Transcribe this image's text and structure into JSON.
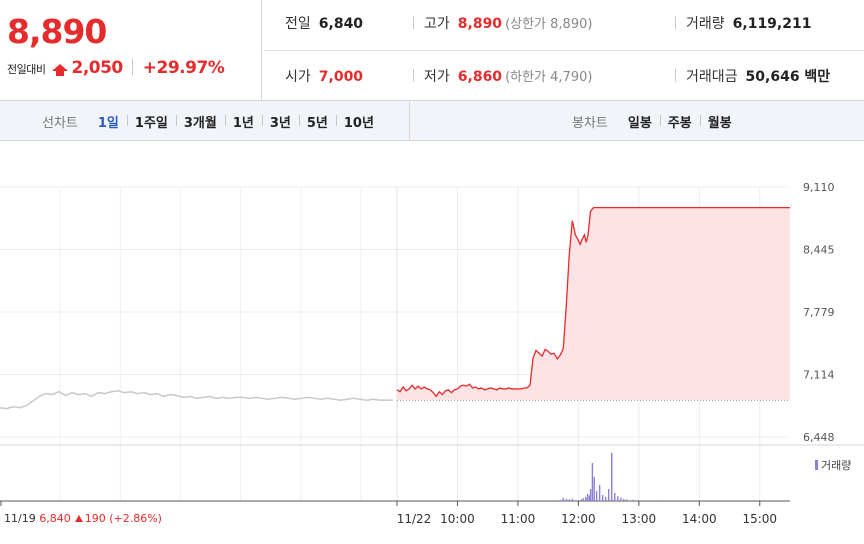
{
  "quote": {
    "price": "8,890",
    "change_label": "전일대비",
    "change_amount": "2,050",
    "change_pct": "+29.97%",
    "stats": {
      "prev_close_label": "전일",
      "prev_close": "6,840",
      "high_label": "고가",
      "high": "8,890",
      "high_sub": "(상한가 8,890)",
      "volume_label": "거래량",
      "volume": "6,119,211",
      "open_label": "시가",
      "open": "7,000",
      "low_label": "저가",
      "low": "6,860",
      "low_sub": "(하한가 4,790)",
      "amount_label": "거래대금",
      "amount": "50,646 백만"
    },
    "colors": {
      "up": "#e52b2b",
      "active_tab": "#2b5cbf"
    }
  },
  "tabs": {
    "line_label": "선차트",
    "line_tabs": [
      "1일",
      "1주일",
      "3개월",
      "1년",
      "3년",
      "5년",
      "10년"
    ],
    "line_active": "1일",
    "candle_label": "봉차트",
    "candle_tabs": [
      "일봉",
      "주봉",
      "월봉"
    ]
  },
  "chart_data": {
    "type": "line",
    "title": "",
    "y_ticks": [
      9110,
      8445,
      7779,
      7114,
      6448
    ],
    "y_tick_labels": [
      "9,110",
      "8,445",
      "7,779",
      "7,114",
      "6,448"
    ],
    "ylim": [
      6448,
      9110
    ],
    "prev_close_line": 6840,
    "x_tick_labels": [
      "11/22",
      "10:00",
      "11:00",
      "12:00",
      "13:00",
      "14:00",
      "15:00"
    ],
    "prev_day": {
      "name": "11/19",
      "close": "6,840",
      "change": "190",
      "change_pct": "(+2.86%)",
      "line_color": "#c8c8c8",
      "values": [
        6760,
        6750,
        6770,
        6760,
        6780,
        6830,
        6880,
        6910,
        6900,
        6930,
        6890,
        6920,
        6900,
        6910,
        6880,
        6920,
        6910,
        6930,
        6940,
        6920,
        6930,
        6910,
        6920,
        6900,
        6910,
        6880,
        6900,
        6890,
        6870,
        6880,
        6860,
        6870,
        6880,
        6860,
        6870,
        6860,
        6870,
        6870,
        6860,
        6870,
        6860,
        6850,
        6860,
        6870,
        6860,
        6850,
        6860,
        6870,
        6860,
        6850,
        6860,
        6850,
        6840,
        6850,
        6860,
        6850,
        6840,
        6850,
        6840,
        6840,
        6840
      ]
    },
    "today": {
      "name": "11/22",
      "line_color": "#e52b2b",
      "fill_color": "#fde3e3",
      "times": [
        9.0,
        9.05,
        9.1,
        9.15,
        9.2,
        9.25,
        9.3,
        9.35,
        9.4,
        9.45,
        9.5,
        9.55,
        9.6,
        9.65,
        9.7,
        9.75,
        9.8,
        9.85,
        9.9,
        9.95,
        10.0,
        10.05,
        10.1,
        10.15,
        10.2,
        10.25,
        10.3,
        10.35,
        10.4,
        10.45,
        10.5,
        10.55,
        10.6,
        10.65,
        10.7,
        10.75,
        10.8,
        10.85,
        10.9,
        10.95,
        11.0,
        11.05,
        11.1,
        11.15,
        11.2,
        11.25,
        11.3,
        11.35,
        11.4,
        11.45,
        11.5,
        11.55,
        11.6,
        11.65,
        11.7,
        11.75,
        11.8,
        11.85,
        11.9,
        11.95,
        12.0,
        12.03,
        12.06,
        12.1,
        12.13,
        12.16,
        12.2,
        12.25,
        12.3,
        12.35,
        12.4,
        12.45,
        12.5,
        12.55,
        12.6,
        12.65,
        12.7,
        12.8,
        13.0,
        13.5,
        14.0,
        14.5,
        15.0,
        15.5
      ],
      "values": [
        6950,
        6930,
        6980,
        6940,
        6960,
        7000,
        6960,
        6990,
        6960,
        6980,
        6960,
        6950,
        6920,
        6880,
        6930,
        6900,
        6940,
        6950,
        6920,
        6950,
        6960,
        6990,
        7000,
        6990,
        7010,
        6970,
        6980,
        6960,
        6970,
        6950,
        6960,
        6970,
        6960,
        6950,
        6970,
        6960,
        6960,
        6970,
        6960,
        6960,
        6960,
        6960,
        6970,
        6970,
        7000,
        7290,
        7370,
        7340,
        7310,
        7380,
        7360,
        7330,
        7340,
        7280,
        7320,
        7390,
        7850,
        8400,
        8750,
        8600,
        8540,
        8500,
        8550,
        8600,
        8520,
        8600,
        8850,
        8890,
        8890,
        8890,
        8890,
        8890,
        8890,
        8890,
        8890,
        8890,
        8890,
        8890,
        8890,
        8890,
        8890,
        8890,
        8890,
        8890
      ]
    },
    "volume": {
      "name": "거래량",
      "color": "#8f7fd6",
      "times": [
        11.7,
        11.75,
        11.8,
        11.85,
        11.9,
        12.05,
        12.08,
        12.12,
        12.15,
        12.18,
        12.2,
        12.23,
        12.26,
        12.3,
        12.35,
        12.4,
        12.45,
        12.5,
        12.55,
        12.6,
        12.65,
        12.7,
        12.75,
        12.8,
        12.9,
        13.0,
        13.3,
        13.6
      ],
      "values": [
        3,
        8,
        5,
        4,
        6,
        4,
        7,
        10,
        18,
        14,
        30,
        95,
        60,
        25,
        40,
        15,
        10,
        30,
        120,
        20,
        12,
        8,
        5,
        4,
        3,
        2,
        2,
        1
      ]
    }
  }
}
